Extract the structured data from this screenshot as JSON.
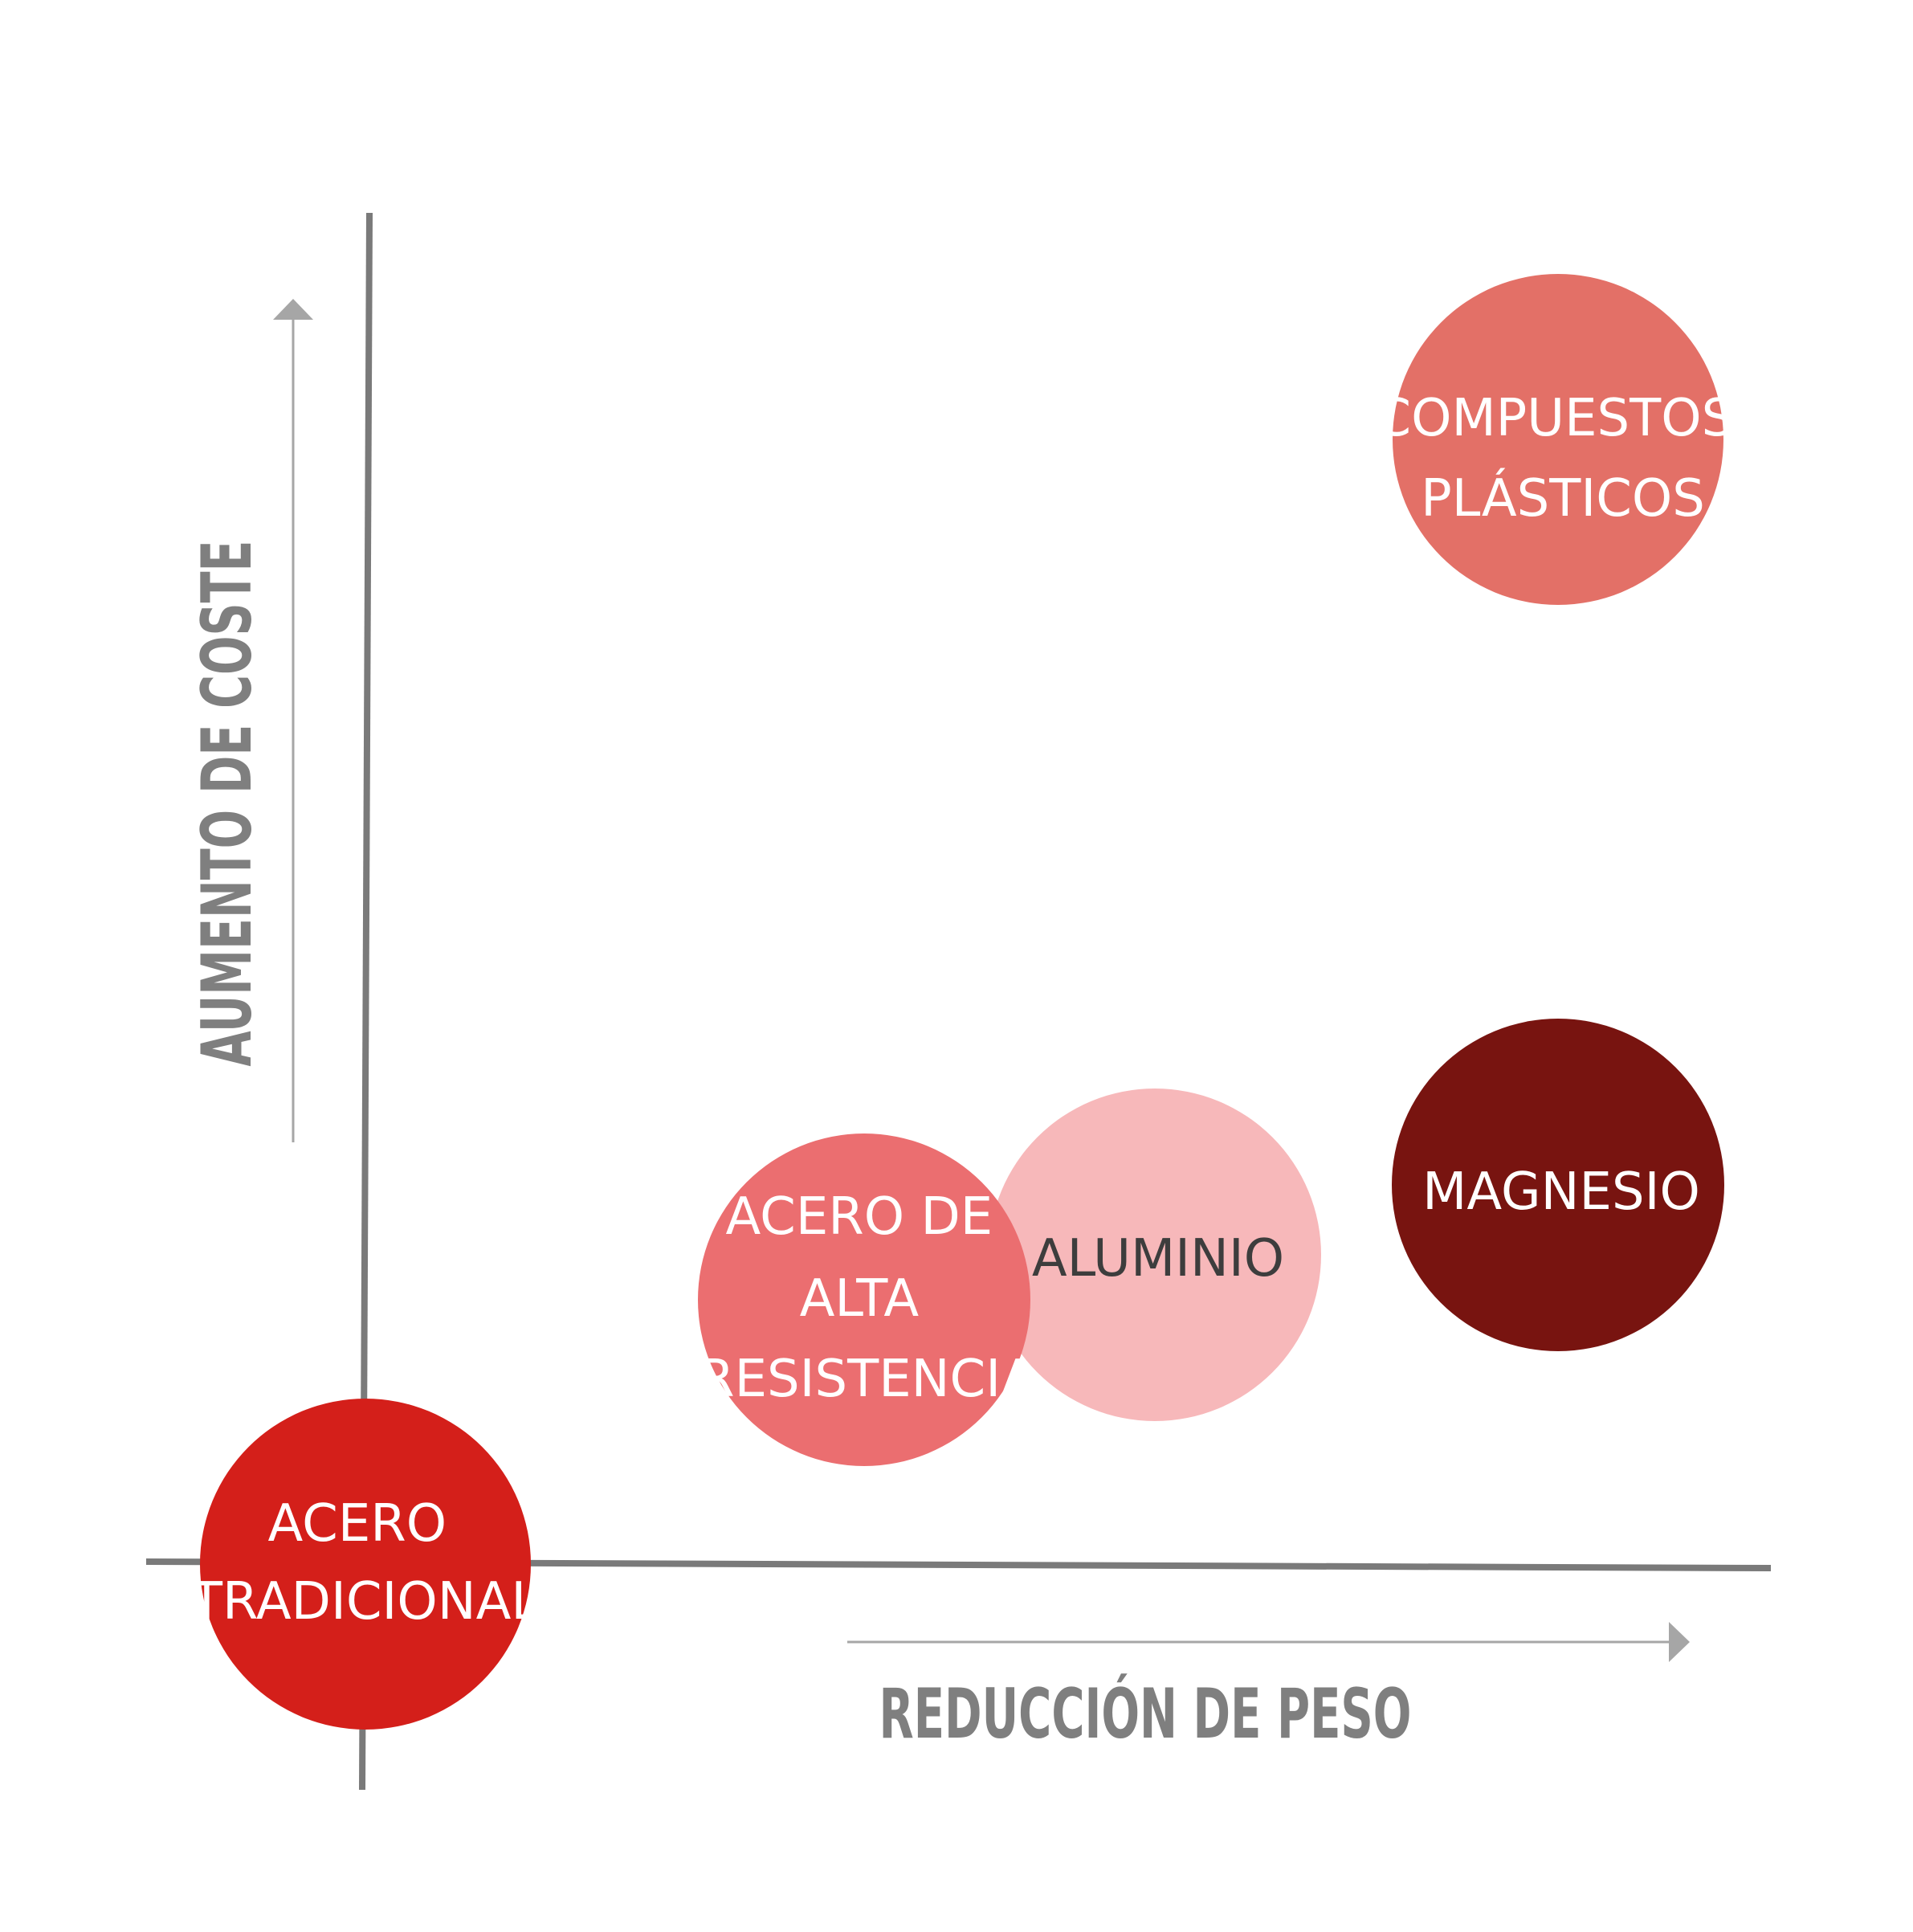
{
  "axes": {
    "x_title": "REDUCCIÓN DE PESO",
    "y_title": "AUMENTO DE COSTE",
    "axis_color": "#7a7a7a",
    "arrow_color": "#a6a6a6",
    "title_color": "#7f7f7f"
  },
  "bubbles": [
    {
      "id": "acero-tradicional",
      "lines": [
        "ACERO",
        "TRADICIONAL"
      ],
      "color": "#d41f1a",
      "text_color": "#ffffff"
    },
    {
      "id": "acero-alta-resistencia",
      "lines": [
        "ACERO DE",
        "ALTA",
        "RESISTENCIA"
      ],
      "color": "#eb6e70",
      "text_color": "#ffffff"
    },
    {
      "id": "aluminio",
      "lines": [
        "ALUMINIO"
      ],
      "color": "#f7b8ba",
      "text_color": "#3d3d3d"
    },
    {
      "id": "magnesio",
      "lines": [
        "MAGNESIO"
      ],
      "color": "#781410",
      "text_color": "#ffffff"
    },
    {
      "id": "compuestos-plasticos",
      "lines": [
        "COMPUESTOS",
        "PLÁSTICOS"
      ],
      "color": "#e37067",
      "text_color": "#ffffff"
    }
  ]
}
